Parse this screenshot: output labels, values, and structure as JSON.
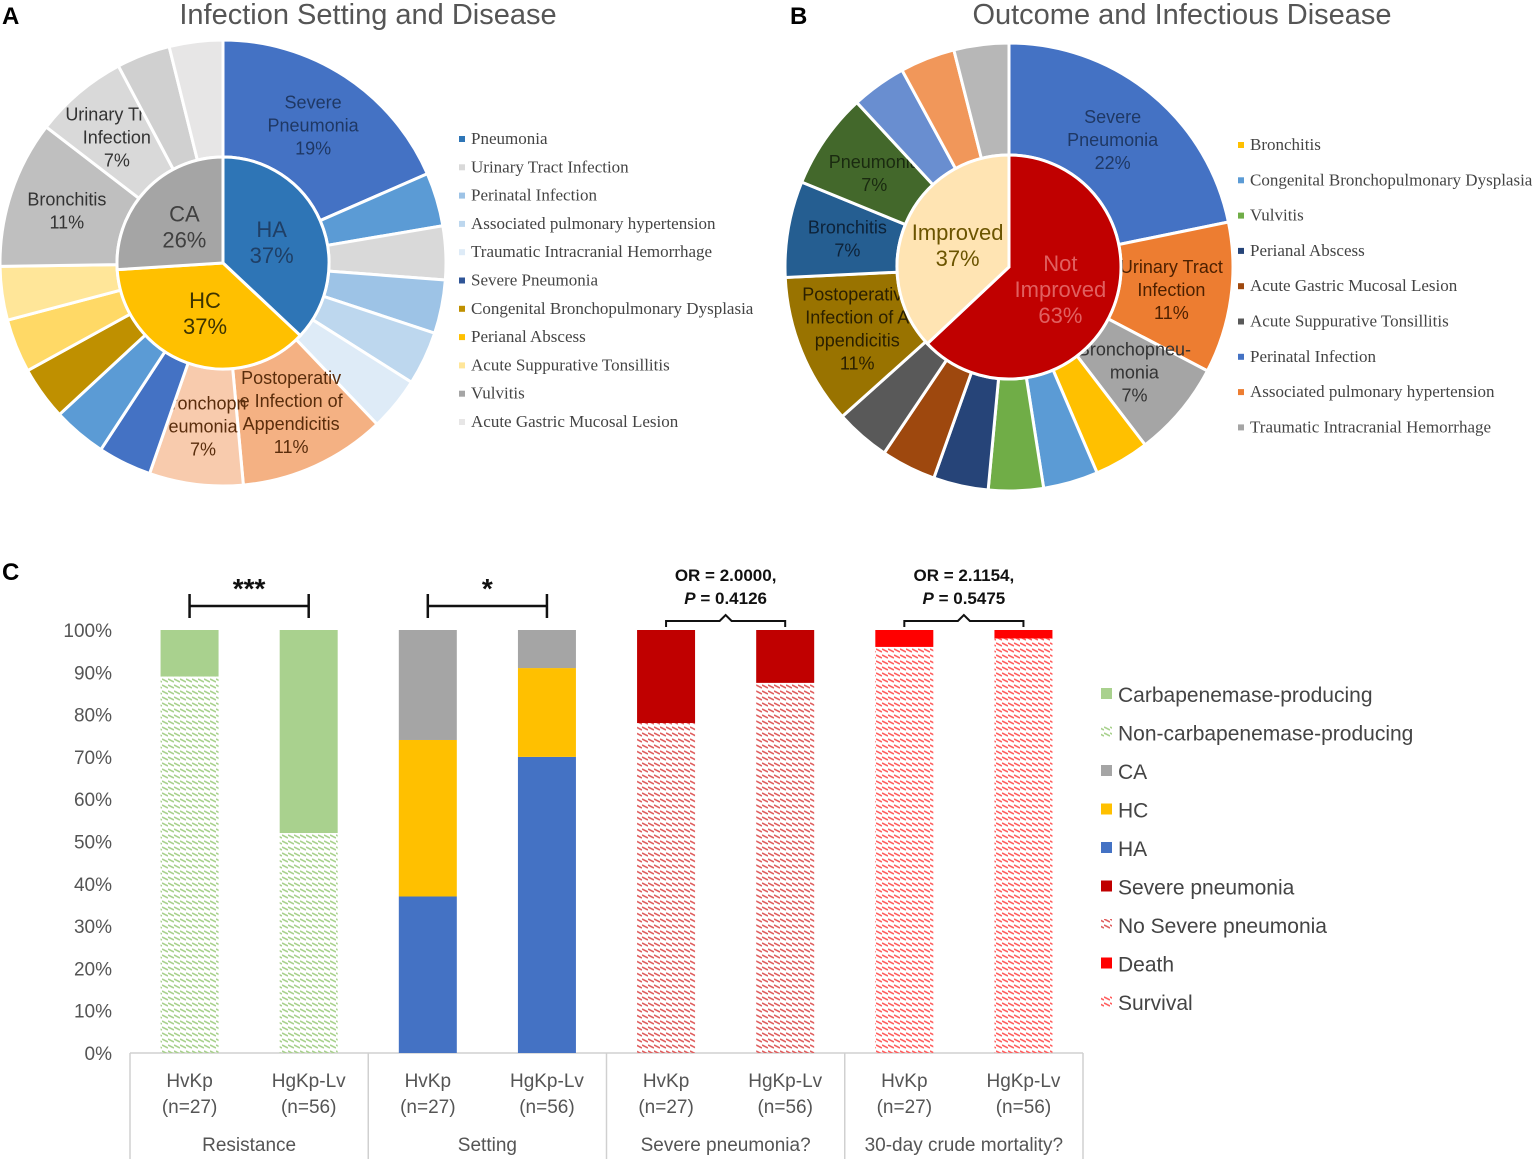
{
  "panel_letters": {
    "a": "A",
    "b": "B",
    "c": "C"
  },
  "chart_data": [
    {
      "type": "pie",
      "panel": "A",
      "title": "Infection Setting and Disease",
      "legend_font": "serif",
      "inner": [
        {
          "name": "HA",
          "pct": "37%",
          "value": 37,
          "color": "#2e75b6",
          "text_color": "#1f3f66"
        },
        {
          "name": "HC",
          "pct": "37%",
          "value": 37,
          "color": "#ffc000",
          "text_color": "#3d3300"
        },
        {
          "name": "CA",
          "pct": "26%",
          "value": 26,
          "color": "#a5a5a5",
          "text_color": "#404040"
        }
      ],
      "outer": [
        {
          "name": "Severe Pneumonia",
          "label": [
            "Severe",
            "Pneumonia",
            "19%"
          ],
          "value": 19,
          "color": "#4472c4",
          "text_color": "#1f3864"
        },
        {
          "name": "",
          "value": 4,
          "color": "#5b9bd5"
        },
        {
          "name": "",
          "value": 4,
          "color": "#d9d9d9"
        },
        {
          "name": "",
          "value": 4,
          "color": "#9dc3e6"
        },
        {
          "name": "",
          "value": 4,
          "color": "#bdd7ee"
        },
        {
          "name": "",
          "value": 4,
          "color": "#deebf7"
        },
        {
          "name": "Postoperative Infection of Appendicitis",
          "label": [
            "Postoperativ",
            "e Infection  of",
            "Appendicitis",
            "11%"
          ],
          "value": 11,
          "color": "#f4b183",
          "text_color": "#5a2d0c"
        },
        {
          "name": "Bronchopneumonia",
          "label": [
            "Bronchopn",
            "eumonia",
            "7%"
          ],
          "value": 7,
          "color": "#f8cbad",
          "text_color": "#5a2d0c"
        },
        {
          "name": "",
          "value": 4,
          "color": "#4472c4"
        },
        {
          "name": "",
          "value": 4,
          "color": "#5b9bd5"
        },
        {
          "name": "",
          "value": 4,
          "color": "#bf9000"
        },
        {
          "name": "",
          "value": 4,
          "color": "#ffd966"
        },
        {
          "name": "",
          "value": 4,
          "color": "#ffe699"
        },
        {
          "name": "Bronchitis",
          "label": [
            "Bronchitis",
            "11%"
          ],
          "value": 11,
          "color": "#bfbfbf",
          "text_color": "#333333"
        },
        {
          "name": "Urinary Tract Infection",
          "label": [
            "Urinary  Tract",
            "Infection",
            "7%"
          ],
          "value": 7,
          "color": "#d9d9d9",
          "text_color": "#333333"
        },
        {
          "name": "",
          "value": 4,
          "color": "#d0d0d0"
        },
        {
          "name": "",
          "value": 4,
          "color": "#e7e6e6"
        }
      ],
      "legend": [
        {
          "label": "Pneumonia",
          "color": "#2e75b6"
        },
        {
          "label": "Urinary Tract Infection",
          "color": "#d9d9d9"
        },
        {
          "label": "Perinatal Infection",
          "color": "#9dc3e6"
        },
        {
          "label": "Associated pulmonary hypertension",
          "color": "#bdd7ee"
        },
        {
          "label": "Traumatic Intracranial Hemorrhage",
          "color": "#deebf7"
        },
        {
          "label": "Severe Pneumonia",
          "color": "#2f5597"
        },
        {
          "label": "Congenital Bronchopulmonary Dysplasia",
          "color": "#bf9000"
        },
        {
          "label": "Perianal Abscess",
          "color": "#ffc000"
        },
        {
          "label": "Acute Suppurative Tonsillitis",
          "color": "#ffe699"
        },
        {
          "label": "Vulvitis",
          "color": "#a5a5a5"
        },
        {
          "label": "Acute Gastric Mucosal Lesion",
          "color": "#e7e6e6"
        }
      ]
    },
    {
      "type": "pie",
      "panel": "B",
      "title": "Outcome and Infectious Disease",
      "legend_font": "serif",
      "inner": [
        {
          "name": "Not Improved",
          "label": [
            "Not",
            "Improved",
            "63%"
          ],
          "value": 63,
          "color": "#c00000",
          "text_color": "#e06060"
        },
        {
          "name": "Improved",
          "label": [
            "Improved",
            "37%"
          ],
          "value": 37,
          "color": "#ffe4b3",
          "text_color": "#6b5400"
        }
      ],
      "outer": [
        {
          "name": "Severe Pneumonia",
          "label": [
            "Severe",
            "Pneumonia",
            "22%"
          ],
          "value": 22,
          "color": "#4472c4",
          "text_color": "#1f3864"
        },
        {
          "name": "Urinary Tract Infection",
          "label": [
            "Urinary  Tract",
            "Infection",
            "11%"
          ],
          "value": 11,
          "color": "#ed7d31",
          "text_color": "#4d2000"
        },
        {
          "name": "Bronchopneumonia",
          "label": [
            "Bronchopneu-",
            "monia",
            "7%"
          ],
          "value": 7,
          "color": "#a5a5a5",
          "text_color": "#333333"
        },
        {
          "name": "",
          "value": 4,
          "color": "#ffc000"
        },
        {
          "name": "",
          "value": 4,
          "color": "#5b9bd5"
        },
        {
          "name": "",
          "value": 4,
          "color": "#70ad47"
        },
        {
          "name": "",
          "value": 4,
          "color": "#264478"
        },
        {
          "name": "",
          "value": 4,
          "color": "#9e480e"
        },
        {
          "name": "",
          "value": 4,
          "color": "#595959"
        },
        {
          "name": "Postoperative Infection of Appendicitis",
          "label": [
            "Postoperative",
            "Infection  of  A",
            "ppendicitis",
            "11%"
          ],
          "value": 11,
          "color": "#997300",
          "text_color": "#2b2000"
        },
        {
          "name": "Bronchitis",
          "label": [
            "Bronchitis",
            "7%"
          ],
          "value": 7,
          "color": "#255e91",
          "text_color": "#0d2238"
        },
        {
          "name": "Pneumonia",
          "label": [
            "Pneumonia",
            "7%"
          ],
          "value": 7,
          "color": "#43682b",
          "text_color": "#1a2a10"
        },
        {
          "name": "",
          "value": 4,
          "color": "#698ed0"
        },
        {
          "name": "",
          "value": 4,
          "color": "#f1975a"
        },
        {
          "name": "",
          "value": 4,
          "color": "#b7b7b7"
        }
      ],
      "legend": [
        {
          "label": "Bronchitis",
          "color": "#ffc000"
        },
        {
          "label": "Congenital Bronchopulmonary Dysplasia",
          "color": "#5b9bd5"
        },
        {
          "label": "Vulvitis",
          "color": "#70ad47"
        },
        {
          "label": "Perianal Abscess",
          "color": "#264478"
        },
        {
          "label": "Acute Gastric Mucosal Lesion",
          "color": "#9e480e"
        },
        {
          "label": "Acute Suppurative Tonsillitis",
          "color": "#595959"
        },
        {
          "label": "Perinatal Infection",
          "color": "#4472c4"
        },
        {
          "label": "Associated pulmonary hypertension",
          "color": "#ed7d31"
        },
        {
          "label": "Traumatic Intracranial Hemorrhage",
          "color": "#a5a5a5"
        }
      ]
    },
    {
      "type": "bar",
      "stacked": true,
      "panel": "C",
      "yticks": [
        "0%",
        "10%",
        "20%",
        "30%",
        "40%",
        "50%",
        "60%",
        "70%",
        "80%",
        "90%",
        "100%"
      ],
      "ylim": [
        0,
        100
      ],
      "groups": [
        {
          "name": "Resistance",
          "sig": "***",
          "bars": [
            {
              "cat": "HvKp",
              "n": "(n=27)",
              "stack": [
                {
                  "series": "Non-carbapenemase-producing",
                  "value": 89
                },
                {
                  "series": "Carbapenemase-producing",
                  "value": 11
                }
              ]
            },
            {
              "cat": "HgKp-Lv",
              "n": "(n=56)",
              "stack": [
                {
                  "series": "Non-carbapenemase-producing",
                  "value": 52
                },
                {
                  "series": "Carbapenemase-producing",
                  "value": 48
                }
              ]
            }
          ]
        },
        {
          "name": "Setting",
          "sig": "*",
          "bars": [
            {
              "cat": "HvKp",
              "n": "(n=27)",
              "stack": [
                {
                  "series": "HA",
                  "value": 37
                },
                {
                  "series": "HC",
                  "value": 37
                },
                {
                  "series": "CA",
                  "value": 26
                }
              ]
            },
            {
              "cat": "HgKp-Lv",
              "n": "(n=56)",
              "stack": [
                {
                  "series": "HA",
                  "value": 70
                },
                {
                  "series": "HC",
                  "value": 21
                },
                {
                  "series": "CA",
                  "value": 9
                }
              ]
            }
          ]
        },
        {
          "name": "Severe pneumonia?",
          "or_text": "OR = 2.0000,",
          "p_label": "P",
          "p_text": " = 0.4126",
          "bars": [
            {
              "cat": "HvKp",
              "n": "(n=27)",
              "stack": [
                {
                  "series": "No Severe pneumonia",
                  "value": 78
                },
                {
                  "series": "Severe pneumonia",
                  "value": 22
                }
              ]
            },
            {
              "cat": "HgKp-Lv",
              "n": "(n=56)",
              "stack": [
                {
                  "series": "No Severe pneumonia",
                  "value": 87.5
                },
                {
                  "series": "Severe pneumonia",
                  "value": 12.5
                }
              ]
            }
          ]
        },
        {
          "name": "30-day crude mortality?",
          "or_text": "OR = 2.1154,",
          "p_label": "P",
          "p_text": " = 0.5475",
          "bars": [
            {
              "cat": "HvKp",
              "n": "(n=27)",
              "stack": [
                {
                  "series": "Survival",
                  "value": 96
                },
                {
                  "series": "Death",
                  "value": 4
                }
              ]
            },
            {
              "cat": "HgKp-Lv",
              "n": "(n=56)",
              "stack": [
                {
                  "series": "Survival",
                  "value": 98
                },
                {
                  "series": "Death",
                  "value": 2
                }
              ]
            }
          ]
        }
      ],
      "series_styles": {
        "Carbapenemase-producing": {
          "color": "#a9d18e",
          "pattern": "solid"
        },
        "Non-carbapenemase-producing": {
          "color": "#a9d18e",
          "pattern": "hatch"
        },
        "CA": {
          "color": "#a5a5a5",
          "pattern": "solid"
        },
        "HC": {
          "color": "#ffc000",
          "pattern": "solid"
        },
        "HA": {
          "color": "#4472c4",
          "pattern": "solid"
        },
        "Severe pneumonia": {
          "color": "#c00000",
          "pattern": "solid"
        },
        "No Severe pneumonia": {
          "color": "#e06060",
          "pattern": "hatch"
        },
        "Death": {
          "color": "#ff0000",
          "pattern": "solid"
        },
        "Survival": {
          "color": "#ff6060",
          "pattern": "hatch"
        }
      },
      "legend": [
        "Carbapenemase-producing",
        "Non-carbapenemase-producing",
        "CA",
        "HC",
        "HA",
        "Severe pneumonia",
        "No Severe pneumonia",
        "Death",
        "Survival"
      ]
    }
  ]
}
